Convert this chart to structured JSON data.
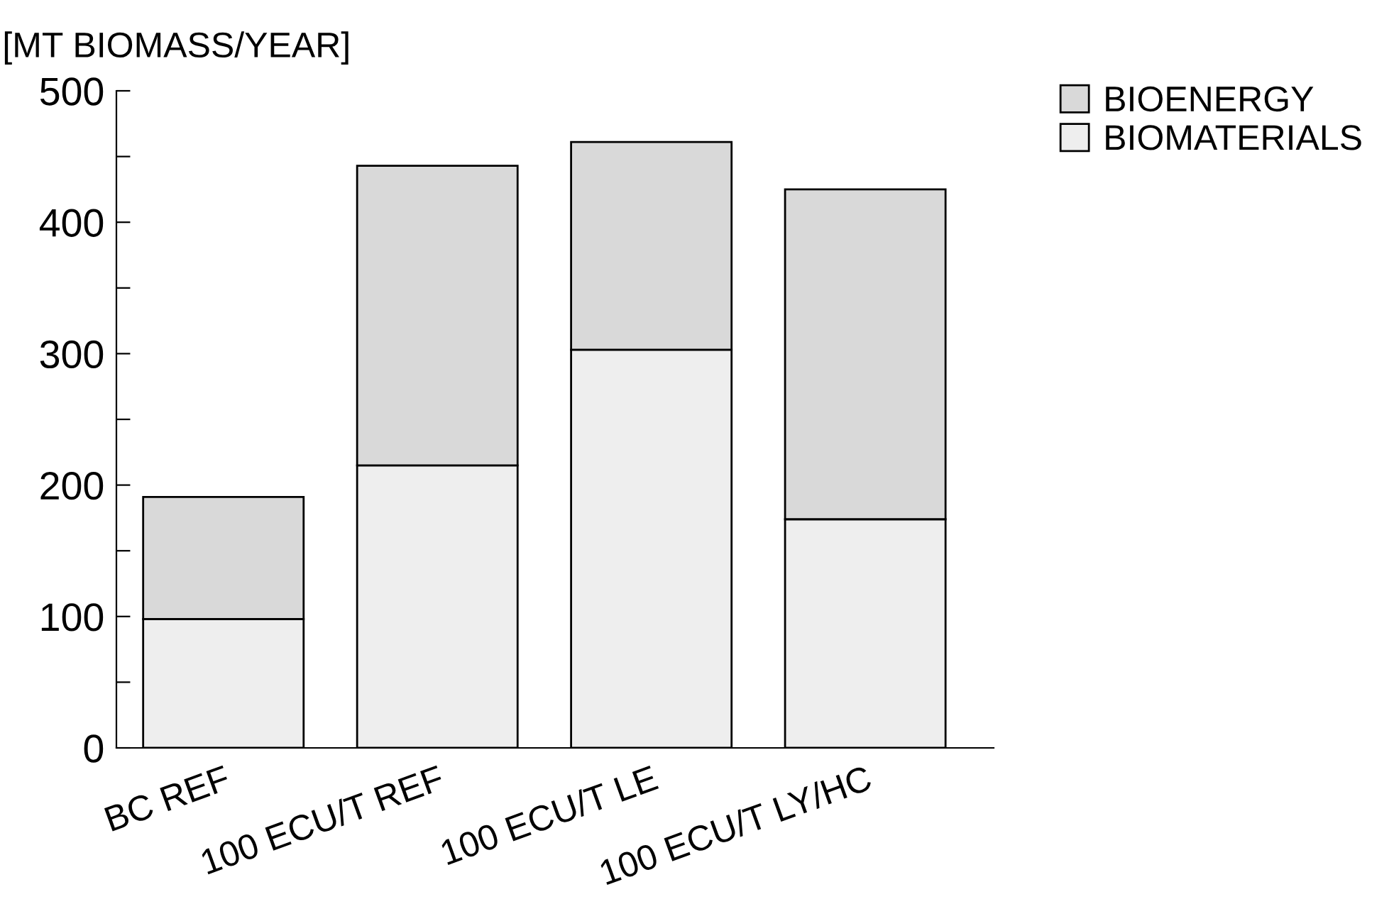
{
  "chart_data": {
    "type": "bar",
    "stacked": true,
    "ylabel": "[MT BIOMASS/YEAR]",
    "categories": [
      "BC REF",
      "100 ECU/T REF",
      "100 ECU/T LE",
      "100 ECU/T LY/HC"
    ],
    "series": [
      {
        "name": "BIOMATERIALS",
        "color": "#eeeeee",
        "values": [
          98,
          215,
          303,
          174
        ]
      },
      {
        "name": "BIOENERGY",
        "color": "#d9d9d9",
        "values": [
          93,
          228,
          158,
          251
        ]
      }
    ],
    "ylim": [
      0,
      500
    ],
    "yticks": [
      0,
      {
        "value": 50,
        "label": null
      },
      100,
      {
        "value": 150,
        "label": null
      },
      200,
      {
        "value": 250,
        "label": null
      },
      300,
      {
        "value": 350,
        "label": null
      },
      400,
      {
        "value": 450,
        "label": null
      },
      500
    ],
    "grid": false,
    "legend": "top right"
  }
}
